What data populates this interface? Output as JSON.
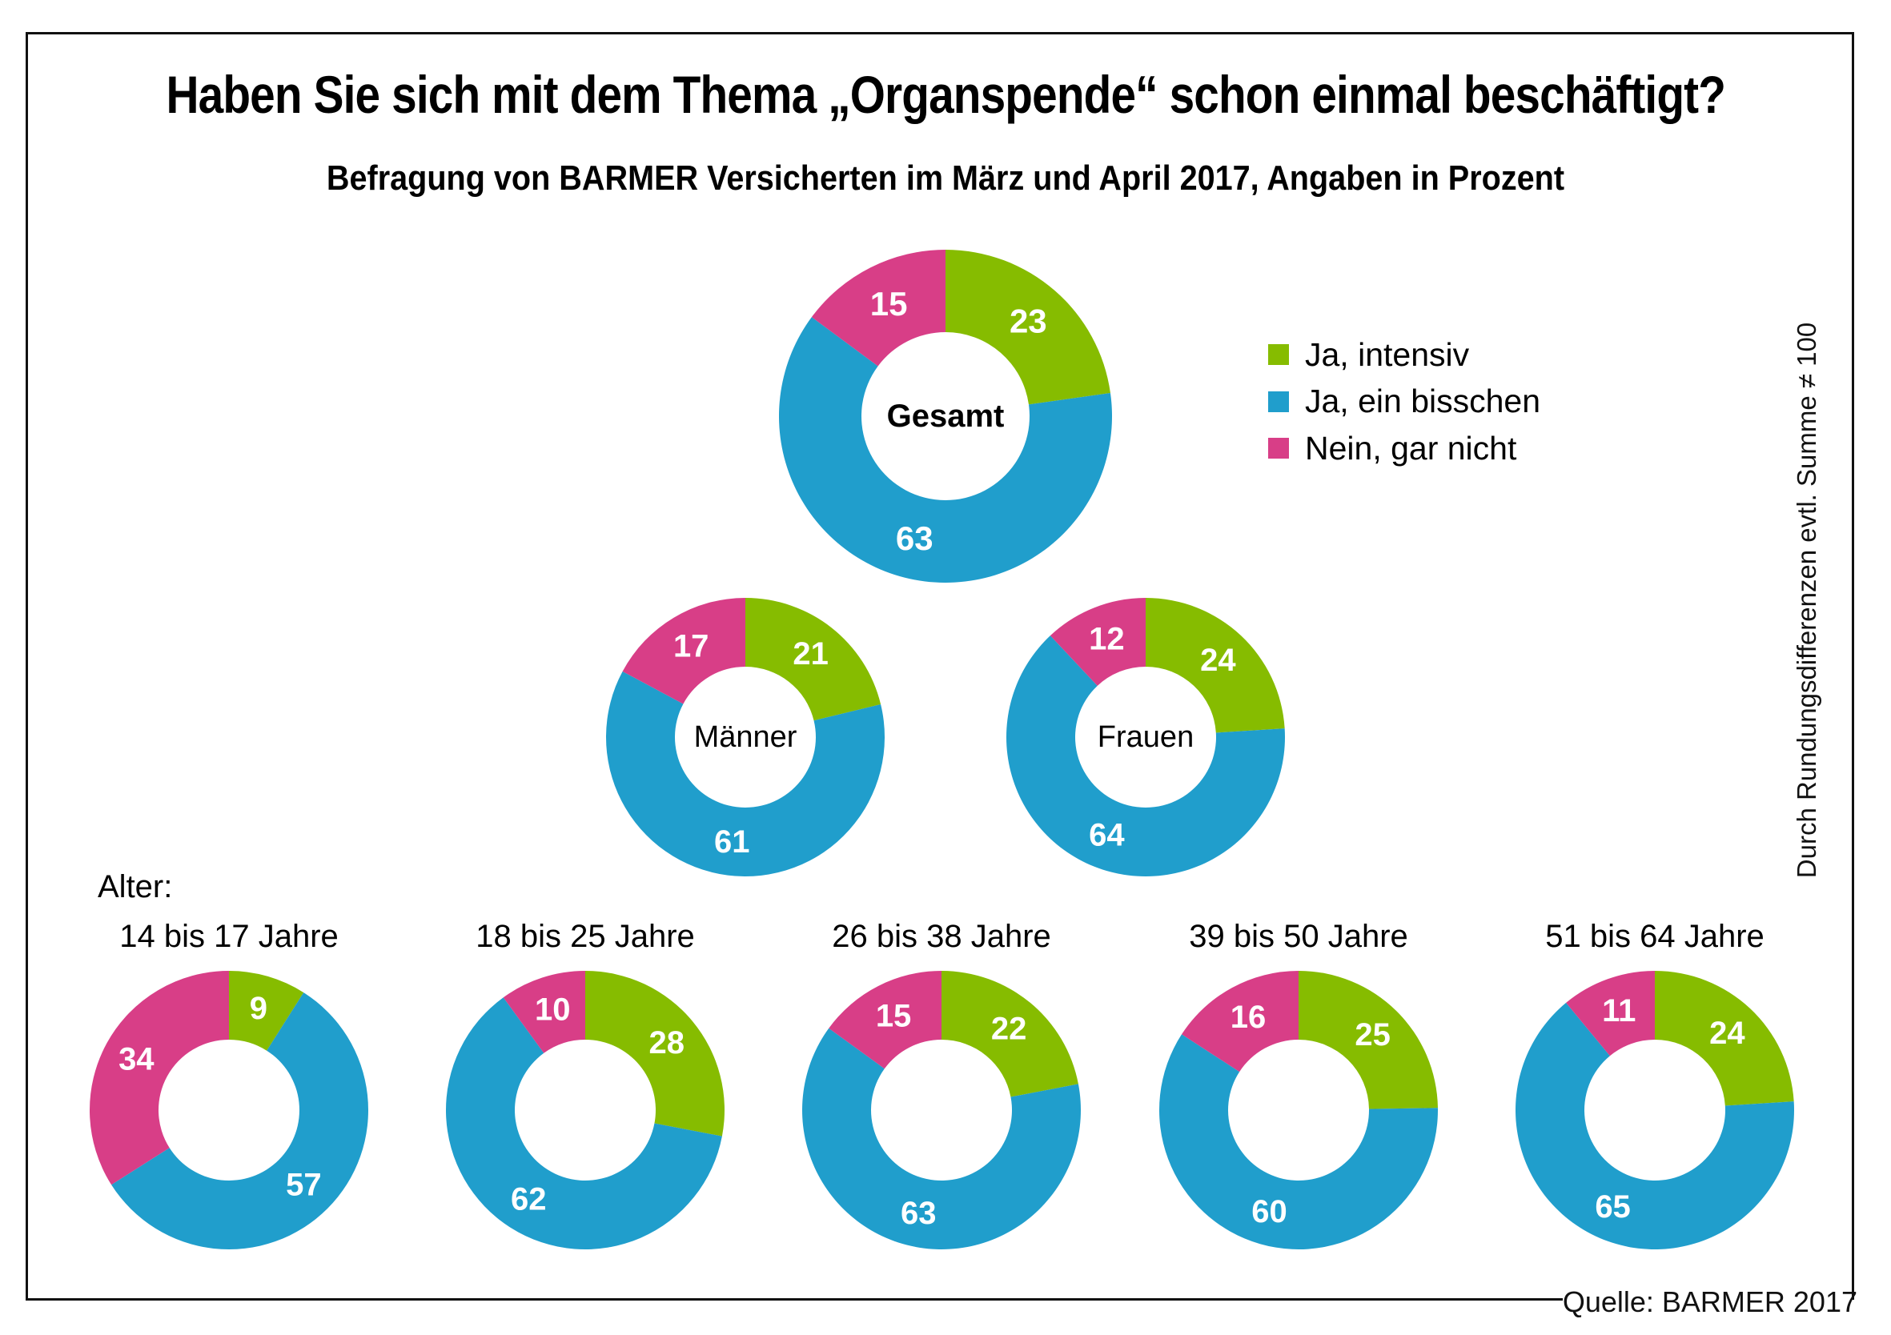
{
  "title": "Haben Sie sich mit dem Thema „Organspende“ schon einmal beschäftigt?",
  "subtitle": "Befragung von BARMER Versicherten im März und April 2017, Angaben in Prozent",
  "alter_label": "Alter:",
  "note": "Durch Rundungsdifferenzen evtl. Summe ≠ 100",
  "source": "Quelle: BARMER 2017",
  "colors": {
    "ja_intensiv": "#86BC00",
    "ja_ein_bisschen": "#209ECC",
    "nein_gar_nicht": "#D83E87"
  },
  "legend": [
    {
      "label": "Ja, intensiv",
      "color": "#86BC00"
    },
    {
      "label": "Ja, ein bisschen",
      "color": "#209ECC"
    },
    {
      "label": "Nein, gar nicht",
      "color": "#D83E87"
    }
  ],
  "chart_data": {
    "type": "pie",
    "variant": "donut",
    "title": "Haben Sie sich mit dem Thema „Organspende“ schon einmal beschäftigt?",
    "subtitle": "Befragung von BARMER Versicherten im März und April 2017, Angaben in Prozent",
    "unit": "%",
    "series_names": [
      "Ja, intensiv",
      "Ja, ein bisschen",
      "Nein, gar nicht"
    ],
    "legend_position": "right",
    "groups": [
      {
        "id": "gesamt",
        "label": "Gesamt",
        "label_position": "center",
        "label_bold": true,
        "values": [
          23,
          63,
          15
        ]
      },
      {
        "id": "maenner",
        "label": "Männer",
        "label_position": "center",
        "values": [
          21,
          61,
          17
        ]
      },
      {
        "id": "frauen",
        "label": "Frauen",
        "label_position": "center",
        "values": [
          24,
          64,
          12
        ]
      },
      {
        "id": "age_14_17",
        "label": "14 bis 17 Jahre",
        "label_position": "above",
        "values": [
          9,
          57,
          34
        ]
      },
      {
        "id": "age_18_25",
        "label": "18 bis 25 Jahre",
        "label_position": "above",
        "values": [
          28,
          62,
          10
        ]
      },
      {
        "id": "age_26_38",
        "label": "26 bis 38 Jahre",
        "label_position": "above",
        "values": [
          22,
          63,
          15
        ]
      },
      {
        "id": "age_39_50",
        "label": "39 bis 50 Jahre",
        "label_position": "above",
        "values": [
          25,
          60,
          16
        ]
      },
      {
        "id": "age_51_64",
        "label": "51 bis 64 Jahre",
        "label_position": "above",
        "values": [
          24,
          65,
          11
        ]
      }
    ]
  }
}
